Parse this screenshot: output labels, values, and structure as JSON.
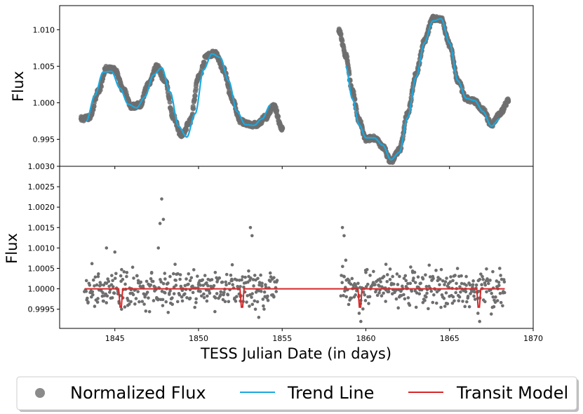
{
  "chart_data": [
    {
      "type": "scatter",
      "panel": "top",
      "title": "",
      "xlabel": "",
      "ylabel": "Flux",
      "xlim": [
        1841.7,
        1870
      ],
      "ylim": [
        0.9913,
        1.0133
      ],
      "yticks": [
        "0.995",
        "1.000",
        "1.005",
        "1.010"
      ],
      "ytick_values": [
        0.995,
        1.0,
        1.005,
        1.01
      ],
      "xtick_values": [
        1845,
        1850,
        1855,
        1860,
        1865,
        1870
      ],
      "grid": false,
      "series": [
        {
          "name": "Normalized Flux",
          "kind": "scatter",
          "color": "#6e6e6e",
          "segments": [
            {
              "x": [
                1843.0,
                1843.5,
                1844.0,
                1844.5,
                1845.0,
                1845.5,
                1846.0,
                1846.5,
                1847.0,
                1847.5,
                1848.0,
                1848.5,
                1849.0,
                1849.5,
                1850.0,
                1850.5,
                1851.0,
                1851.5,
                1852.0,
                1852.5,
                1853.0,
                1853.5,
                1854.0,
                1854.5,
                1855.0
              ],
              "y": [
                0.9978,
                0.998,
                1.0015,
                1.0047,
                1.0045,
                1.0018,
                0.9995,
                0.9997,
                1.0025,
                1.005,
                1.003,
                0.998,
                0.9955,
                0.9975,
                1.0035,
                1.0065,
                1.0068,
                1.0045,
                1.0005,
                0.9975,
                0.997,
                0.997,
                0.998,
                0.9995,
                0.9965
              ]
            },
            {
              "x": [
                1858.4,
                1858.8,
                1859.2,
                1859.6,
                1860.0,
                1860.5,
                1861.0,
                1861.5,
                1862.0,
                1862.5,
                1863.0,
                1863.5,
                1864.0,
                1864.5,
                1865.0,
                1865.5,
                1866.0,
                1866.5,
                1867.0,
                1867.5,
                1868.0,
                1868.5
              ],
              "y": [
                1.0098,
                1.0065,
                1.0015,
                0.9975,
                0.995,
                0.9952,
                0.994,
                0.992,
                0.9935,
                0.9985,
                1.004,
                1.0085,
                1.0115,
                1.0115,
                1.008,
                1.003,
                1.0005,
                1.0002,
                0.999,
                0.997,
                0.9985,
                1.0002
              ]
            }
          ]
        },
        {
          "name": "Trend Line",
          "kind": "line",
          "color": "#1aa9e0",
          "segments": [
            {
              "x": [
                1843.3,
                1843.8,
                1844.3,
                1844.8,
                1845.3,
                1845.8,
                1846.3,
                1846.8,
                1847.3,
                1847.8,
                1848.3,
                1848.8,
                1849.3,
                1849.8,
                1850.3,
                1850.8,
                1851.3,
                1851.8,
                1852.3,
                1852.8,
                1853.3,
                1853.8,
                1854.3
              ],
              "y": [
                0.9975,
                1.001,
                1.0042,
                1.0043,
                1.002,
                0.9998,
                0.9993,
                1.0008,
                1.0038,
                1.0048,
                1.0015,
                0.9968,
                0.9953,
                0.9985,
                1.0045,
                1.0067,
                1.0062,
                1.003,
                0.9988,
                0.997,
                0.9969,
                0.9978,
                0.9997
              ]
            },
            {
              "x": [
                1858.8,
                1859.2,
                1859.6,
                1860.0,
                1860.5,
                1861.0,
                1861.5,
                1862.0,
                1862.5,
                1863.0,
                1863.5,
                1864.0,
                1864.5,
                1865.0,
                1865.5,
                1866.0,
                1866.5,
                1867.0,
                1867.5,
                1868.0
              ],
              "y": [
                1.005,
                1.0005,
                0.997,
                0.9952,
                0.9952,
                0.9942,
                0.9922,
                0.9932,
                0.998,
                1.0035,
                1.0082,
                1.0112,
                1.0115,
                1.0082,
                1.003,
                1.0006,
                1.0003,
                0.9988,
                0.9968,
                0.9978
              ]
            }
          ]
        }
      ]
    },
    {
      "type": "scatter",
      "panel": "bottom",
      "title": "",
      "xlabel": "TESS Julian Date (in days)",
      "ylabel": "Flux",
      "xlim": [
        1841.7,
        1870
      ],
      "ylim": [
        0.99903,
        1.003
      ],
      "yticks": [
        "0.9995",
        "1.0000",
        "1.0005",
        "1.0010",
        "1.0015",
        "1.0020",
        "1.0025",
        "1.0030"
      ],
      "ytick_values": [
        0.9995,
        1.0,
        1.0005,
        1.001,
        1.0015,
        1.002,
        1.0025,
        1.003
      ],
      "xticks": [
        "1845",
        "1850",
        "1855",
        "1860",
        "1865",
        "1870"
      ],
      "xtick_values": [
        1845,
        1850,
        1855,
        1860,
        1865,
        1870
      ],
      "grid": false,
      "series": [
        {
          "name": "Normalized Flux",
          "kind": "scatter",
          "color": "#6e6e6e",
          "points": [
            [
              1843.3,
              1.0002
            ],
            [
              1843.6,
              0.9998
            ],
            [
              1844.0,
              1.0003
            ],
            [
              1844.3,
              0.9997
            ],
            [
              1844.5,
              1.001
            ],
            [
              1844.8,
              1.0001
            ],
            [
              1845.0,
              1.0009
            ],
            [
              1845.2,
              0.9999
            ],
            [
              1845.4,
              0.9995
            ],
            [
              1845.7,
              1.0003
            ],
            [
              1846.0,
              1.0
            ],
            [
              1846.4,
              1.0002
            ],
            [
              1846.8,
              0.9998
            ],
            [
              1847.2,
              1.0004
            ],
            [
              1847.6,
              1.001
            ],
            [
              1847.8,
              1.0022
            ],
            [
              1847.9,
              1.0017
            ],
            [
              1847.7,
              1.0016
            ],
            [
              1848.0,
              0.9999
            ],
            [
              1848.3,
              1.0003
            ],
            [
              1848.6,
              1.0006
            ],
            [
              1849.0,
              0.9998
            ],
            [
              1849.5,
              1.0002
            ],
            [
              1850.0,
              1.0001
            ],
            [
              1850.5,
              0.9997
            ],
            [
              1851.0,
              1.0004
            ],
            [
              1851.5,
              0.9999
            ],
            [
              1852.0,
              1.0002
            ],
            [
              1852.5,
              0.9997
            ],
            [
              1853.0,
              1.0003
            ],
            [
              1853.1,
              1.0015
            ],
            [
              1853.2,
              1.0013
            ],
            [
              1853.4,
              0.9995
            ],
            [
              1853.6,
              0.9993
            ],
            [
              1854.0,
              1.0001
            ],
            [
              1854.5,
              0.9998
            ],
            [
              1858.6,
              1.0015
            ],
            [
              1858.7,
              1.0013
            ],
            [
              1858.8,
              1.0007
            ],
            [
              1859.0,
              1.0002
            ],
            [
              1859.3,
              0.9998
            ],
            [
              1859.6,
              0.9994
            ],
            [
              1859.7,
              0.9992
            ],
            [
              1860.0,
              1.0004
            ],
            [
              1860.4,
              1.0001
            ],
            [
              1860.8,
              0.9999
            ],
            [
              1861.2,
              1.0006
            ],
            [
              1861.6,
              1.0003
            ],
            [
              1862.0,
              0.9998
            ],
            [
              1862.4,
              1.0002
            ],
            [
              1862.8,
              1.0004
            ],
            [
              1863.2,
              1.0
            ],
            [
              1863.6,
              0.9998
            ],
            [
              1864.0,
              1.0003
            ],
            [
              1864.4,
              1.0001
            ],
            [
              1864.8,
              0.9999
            ],
            [
              1865.2,
              1.0002
            ],
            [
              1865.6,
              0.9998
            ],
            [
              1866.0,
              1.0003
            ],
            [
              1866.4,
              1.0001
            ],
            [
              1866.7,
              0.9994
            ],
            [
              1866.8,
              0.9992
            ],
            [
              1867.2,
              1.0002
            ],
            [
              1867.6,
              0.9998
            ],
            [
              1868.0,
              1.0005
            ],
            [
              1868.2,
              0.9999
            ]
          ]
        },
        {
          "name": "Transit Model",
          "kind": "line",
          "color": "#d62728",
          "baseline": 1.0,
          "x_start": 1843.2,
          "x_end": 1868.3,
          "transits": [
            {
              "center": 1845.35,
              "depth": 0.99955
            },
            {
              "center": 1852.6,
              "depth": 0.99955
            },
            {
              "center": 1859.65,
              "depth": 0.99955
            },
            {
              "center": 1866.75,
              "depth": 0.99955
            }
          ]
        }
      ]
    }
  ],
  "legend": {
    "placement": "bottom",
    "items": [
      {
        "label": "Normalized Flux",
        "marker": "circle",
        "color": "#6e6e6e"
      },
      {
        "label": "Trend Line",
        "marker": "line",
        "color": "#1aa9e0"
      },
      {
        "label": "Transit Model",
        "marker": "line",
        "color": "#d62728"
      }
    ]
  }
}
